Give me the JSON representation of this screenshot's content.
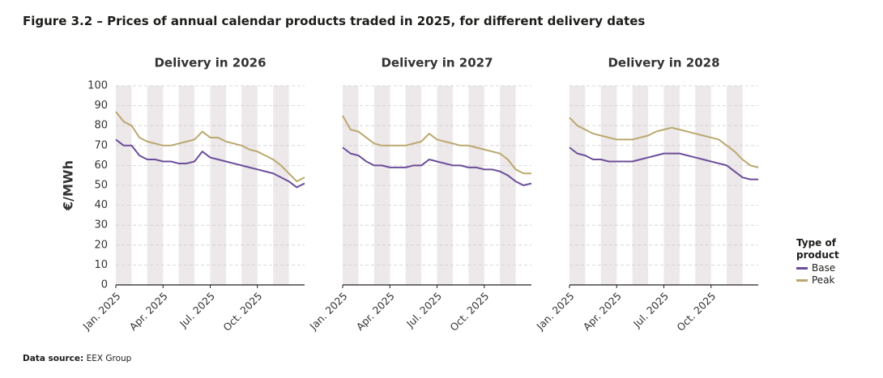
{
  "title": "Figure 3.2 – Prices of annual calendar products traded in 2025, for different delivery dates",
  "source_label": "Data source:",
  "source": "EEX Group",
  "legend_title": "Type of product",
  "chart_data": [
    {
      "type": "line",
      "title": "Delivery in 2026",
      "y_label": "€/MWh",
      "x": [
        0,
        0.5,
        1,
        1.5,
        2,
        2.5,
        3,
        3.5,
        4,
        4.5,
        5,
        5.5,
        6,
        6.5,
        7,
        7.5,
        8,
        8.5,
        9,
        9.5,
        10,
        10.5,
        11,
        11.5,
        12
      ],
      "xlim": [
        0,
        12
      ],
      "xticks": [
        {
          "value": 0,
          "label": "Jan. 2025"
        },
        {
          "value": 3,
          "label": "Apr. 2025"
        },
        {
          "value": 6,
          "label": "Jul. 2025"
        },
        {
          "value": 9,
          "label": "Oct. 2025"
        }
      ],
      "ylim": [
        0,
        100
      ],
      "yticks": [
        0,
        10,
        20,
        30,
        40,
        50,
        60,
        70,
        80,
        90,
        100
      ],
      "grid": true,
      "series": [
        {
          "name": "Base",
          "color": "#6b4e9b",
          "values": [
            73,
            70,
            70,
            65,
            63,
            63,
            62,
            62,
            61,
            61,
            62,
            67,
            64,
            63,
            62,
            61,
            60,
            59,
            58,
            57,
            56,
            54,
            52,
            49,
            51
          ]
        },
        {
          "name": "Peak",
          "color": "#bba86f",
          "values": [
            87,
            82,
            80,
            74,
            72,
            71,
            70,
            70,
            71,
            72,
            73,
            77,
            74,
            74,
            72,
            71,
            70,
            68,
            67,
            65,
            63,
            60,
            56,
            52,
            54
          ]
        }
      ]
    },
    {
      "type": "line",
      "title": "Delivery in 2027",
      "x": [
        0,
        0.5,
        1,
        1.5,
        2,
        2.5,
        3,
        3.5,
        4,
        4.5,
        5,
        5.5,
        6,
        6.5,
        7,
        7.5,
        8,
        8.5,
        9,
        9.5,
        10,
        10.5,
        11,
        11.5,
        12
      ],
      "xlim": [
        0,
        12
      ],
      "xticks": [
        {
          "value": 0,
          "label": "Jan. 2025"
        },
        {
          "value": 3,
          "label": "Apr. 2025"
        },
        {
          "value": 6,
          "label": "Jul. 2025"
        },
        {
          "value": 9,
          "label": "Oct. 2025"
        }
      ],
      "ylim": [
        0,
        100
      ],
      "yticks": [
        0,
        10,
        20,
        30,
        40,
        50,
        60,
        70,
        80,
        90,
        100
      ],
      "grid": true,
      "series": [
        {
          "color": "#6b4e9b",
          "values": [
            69,
            66,
            65,
            62,
            60,
            60,
            59,
            59,
            59,
            60,
            60,
            63,
            62,
            61,
            60,
            60,
            59,
            59,
            58,
            58,
            57,
            55,
            52,
            50,
            51
          ]
        },
        {
          "color": "#bba86f",
          "values": [
            85,
            78,
            77,
            74,
            71,
            70,
            70,
            70,
            70,
            71,
            72,
            76,
            73,
            72,
            71,
            70,
            70,
            69,
            68,
            67,
            66,
            63,
            58,
            56,
            56
          ]
        }
      ]
    },
    {
      "type": "line",
      "title": "Delivery in 2028",
      "x": [
        0,
        0.5,
        1,
        1.5,
        2,
        2.5,
        3,
        3.5,
        4,
        4.5,
        5,
        5.5,
        6,
        6.5,
        7,
        7.5,
        8,
        8.5,
        9,
        9.5,
        10,
        10.5,
        11,
        11.5,
        12
      ],
      "xlim": [
        0,
        12
      ],
      "xticks": [
        {
          "value": 0,
          "label": "Jan. 2025"
        },
        {
          "value": 3,
          "label": "Apr. 2025"
        },
        {
          "value": 6,
          "label": "Jul. 2025"
        },
        {
          "value": 9,
          "label": "Oct. 2025"
        }
      ],
      "ylim": [
        0,
        100
      ],
      "yticks": [
        0,
        10,
        20,
        30,
        40,
        50,
        60,
        70,
        80,
        90,
        100
      ],
      "grid": true,
      "series": [
        {
          "color": "#6b4e9b",
          "values": [
            69,
            66,
            65,
            63,
            63,
            62,
            62,
            62,
            62,
            63,
            64,
            65,
            66,
            66,
            66,
            65,
            64,
            63,
            62,
            61,
            60,
            57,
            54,
            53,
            53
          ]
        },
        {
          "color": "#bba86f",
          "values": [
            84,
            80,
            78,
            76,
            75,
            74,
            73,
            73,
            73,
            74,
            75,
            77,
            78,
            79,
            78,
            77,
            76,
            75,
            74,
            73,
            70,
            67,
            63,
            60,
            59
          ]
        }
      ]
    }
  ]
}
